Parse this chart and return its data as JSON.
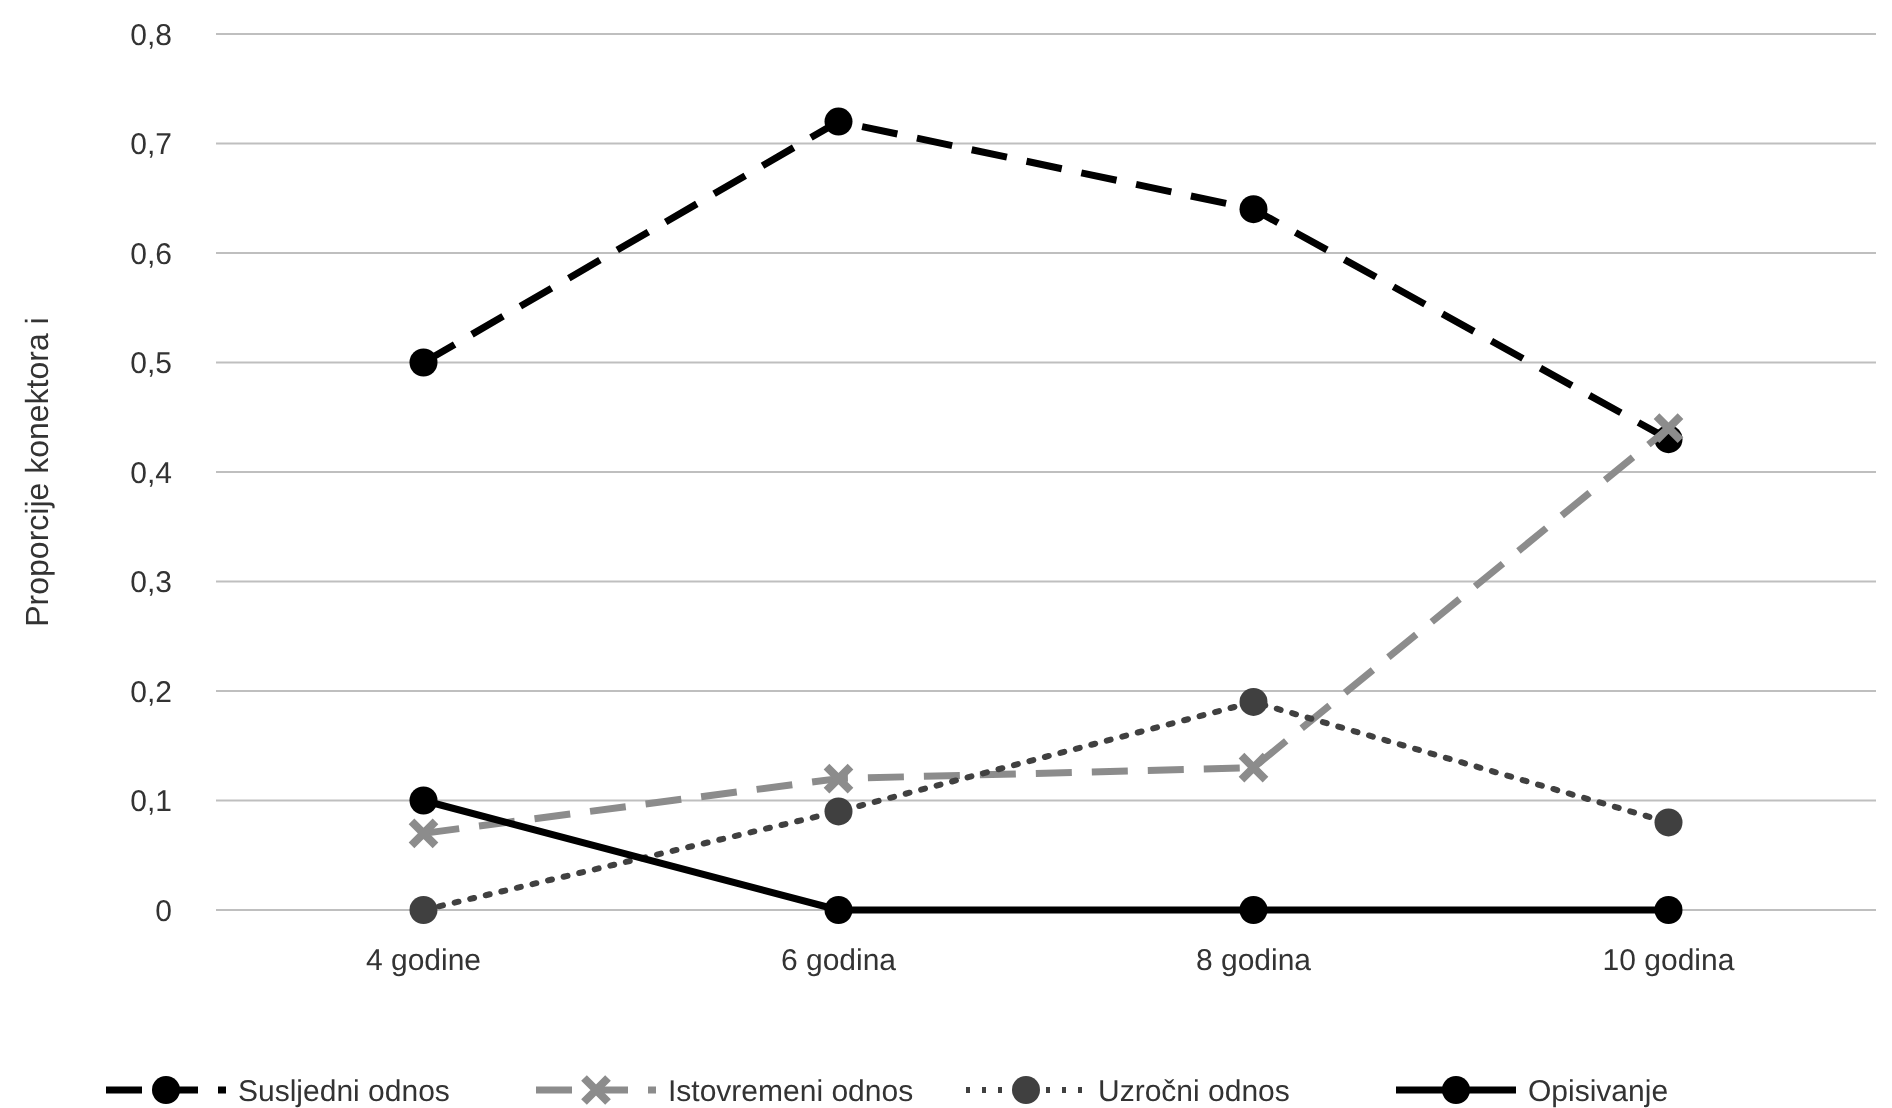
{
  "chart_data": {
    "type": "line",
    "ylabel": "Proporcije konektora i",
    "categories": [
      "4 godine",
      "6 godina",
      "8 godina",
      "10 godina"
    ],
    "series": [
      {
        "name": "Susljedni odnos",
        "color": "#000000",
        "values": [
          0.5,
          0.72,
          0.64,
          0.43
        ],
        "marker": "circle",
        "line_style": "dashed"
      },
      {
        "name": "Istovremeni odnos",
        "color": "#8c8c8c",
        "values": [
          0.07,
          0.12,
          0.13,
          0.44
        ],
        "marker": "cross",
        "line_style": "dashed"
      },
      {
        "name": "Uzročni odnos",
        "color": "#404040",
        "values": [
          0,
          0.09,
          0.19,
          0.08
        ],
        "marker": "circle",
        "line_style": "dotted"
      },
      {
        "name": "Opisivanje",
        "color": "#000000",
        "values": [
          0.1,
          0,
          0,
          0
        ],
        "marker": "circle",
        "line_style": "solid"
      }
    ],
    "ylim": [
      0,
      0.8
    ],
    "yticks": [
      {
        "value": 0,
        "label": "0"
      },
      {
        "value": 0.1,
        "label": "0,1"
      },
      {
        "value": 0.2,
        "label": "0,2"
      },
      {
        "value": 0.3,
        "label": "0,3"
      },
      {
        "value": 0.4,
        "label": "0,4"
      },
      {
        "value": 0.5,
        "label": "0,5"
      },
      {
        "value": 0.6,
        "label": "0,6"
      },
      {
        "value": 0.7,
        "label": "0,7"
      },
      {
        "value": 0.8,
        "label": "0,8"
      }
    ],
    "grid": "y",
    "legend": "bottom"
  }
}
